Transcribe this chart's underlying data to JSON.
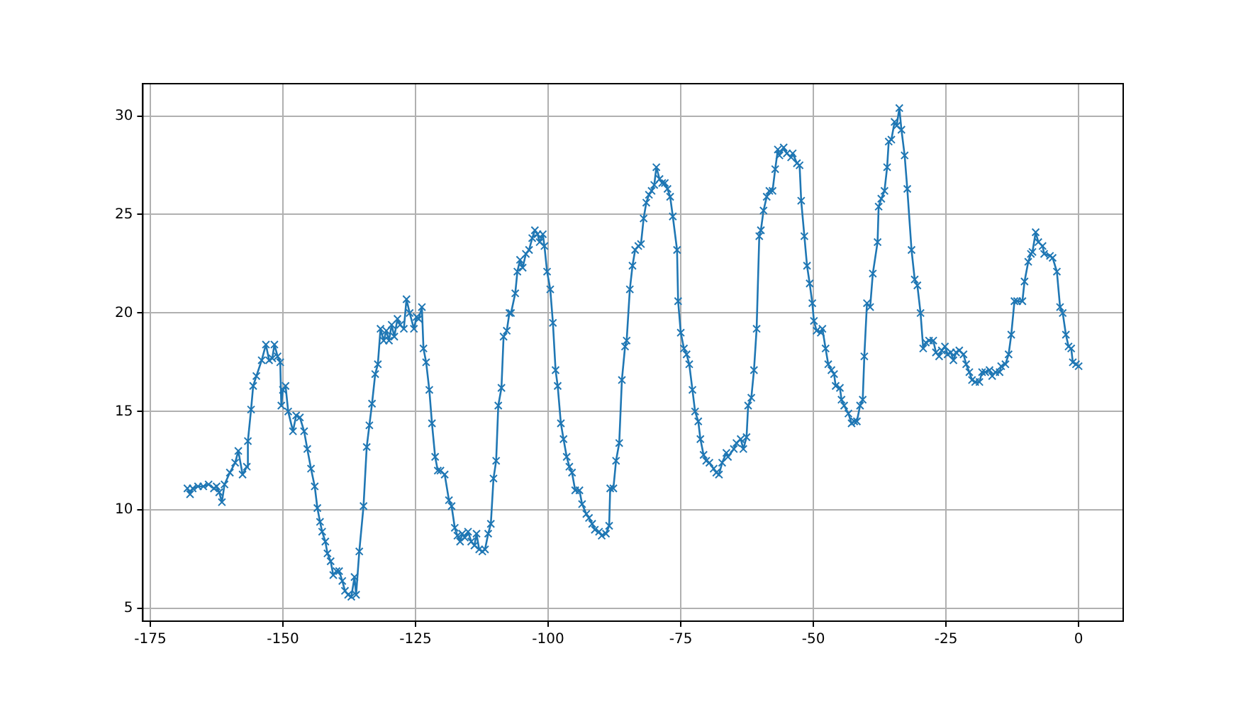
{
  "chart_data": {
    "type": "line",
    "marker": "cross",
    "line_style": "solid",
    "grid": true,
    "xlim": [
      -176.4,
      8.4
    ],
    "ylim": [
      4.36,
      31.64
    ],
    "xticks": [
      -175,
      -150,
      -125,
      -100,
      -75,
      -50,
      -25,
      0
    ],
    "yticks": [
      5,
      10,
      15,
      20,
      25,
      30
    ],
    "series": [
      {
        "color": "#1f77b4",
        "x": [
          -168,
          -167.5,
          -167,
          -166,
          -165,
          -164,
          -163,
          -162.5,
          -162,
          -161.5,
          -161,
          -160,
          -159,
          -158.4,
          -157.6,
          -156.8,
          -156.6,
          -156,
          -155.6,
          -155,
          -154,
          -153.2,
          -152.6,
          -152,
          -151.6,
          -151,
          -150.5,
          -150.3,
          -150,
          -149.5,
          -149,
          -148.1,
          -147.5,
          -146.8,
          -146,
          -145.4,
          -144.7,
          -144,
          -143.5,
          -143,
          -142.6,
          -142,
          -141.6,
          -141,
          -140.5,
          -139.9,
          -139.4,
          -138.8,
          -138.3,
          -137.7,
          -137.1,
          -136.5,
          -136.2,
          -135.6,
          -134.8,
          -134.2,
          -133.7,
          -133.2,
          -132.6,
          -132.1,
          -131.6,
          -131,
          -130.5,
          -130,
          -129.5,
          -129,
          -128.4,
          -127.9,
          -127.2,
          -126.7,
          -126.1,
          -125.3,
          -124.8,
          -124.4,
          -123.8,
          -123.5,
          -123,
          -122.4,
          -121.9,
          -121.3,
          -120.8,
          -120.3,
          -119.5,
          -118.7,
          -118.2,
          -117.6,
          -117.1,
          -116.6,
          -116.2,
          -115.7,
          -115.1,
          -114.5,
          -113.9,
          -113.5,
          -113,
          -112.4,
          -111.9,
          -111.3,
          -110.8,
          -110.3,
          -109.8,
          -109.4,
          -108.8,
          -108.4,
          -107.8,
          -107.3,
          -107,
          -106.2,
          -105.8,
          -105.3,
          -104.8,
          -104.2,
          -103.6,
          -103,
          -102.5,
          -102,
          -101.6,
          -101,
          -100.7,
          -100.2,
          -99.6,
          -99.1,
          -98.6,
          -98.2,
          -97.6,
          -97.1,
          -96.5,
          -96,
          -95.5,
          -94.9,
          -94.1,
          -93.6,
          -92.8,
          -92.3,
          -91.7,
          -91.2,
          -90.4,
          -89.9,
          -89.1,
          -88.5,
          -88.3,
          -87.7,
          -87.2,
          -86.6,
          -86.1,
          -85.5,
          -85.2,
          -84.6,
          -84.1,
          -83.6,
          -83,
          -82.5,
          -82,
          -81.5,
          -81,
          -80.5,
          -80,
          -79.6,
          -79,
          -78.5,
          -78,
          -77.5,
          -77,
          -76.5,
          -75.7,
          -75.5,
          -75,
          -74.4,
          -73.9,
          -73.4,
          -72.8,
          -72.3,
          -71.7,
          -71.3,
          -70.7,
          -70.2,
          -69.6,
          -68.8,
          -68.3,
          -67.8,
          -67.2,
          -66.4,
          -66.1,
          -65,
          -64.5,
          -63.7,
          -63.2,
          -62.6,
          -62.3,
          -61.7,
          -61.2,
          -60.7,
          -60.2,
          -59.9,
          -59.4,
          -58.8,
          -58.3,
          -57.7,
          -57.2,
          -56.7,
          -56.4,
          -55.6,
          -55,
          -54.2,
          -53.9,
          -53.1,
          -52.6,
          -52.3,
          -51.7,
          -51.2,
          -50.7,
          -50.2,
          -49.9,
          -49.4,
          -48.6,
          -48.3,
          -47.7,
          -47.2,
          -46.6,
          -46.1,
          -45.8,
          -45,
          -44.7,
          -44.2,
          -43.4,
          -42.8,
          -42.3,
          -41.8,
          -41.2,
          -40.7,
          -40.4,
          -39.9,
          -39.3,
          -38.8,
          -37.9,
          -37.7,
          -37.2,
          -36.6,
          -36.1,
          -35.8,
          -35.3,
          -34.7,
          -34.3,
          -33.8,
          -33.4,
          -32.8,
          -32.3,
          -31.5,
          -30.9,
          -30.4,
          -29.8,
          -29.3,
          -28.8,
          -28.2,
          -27.4,
          -26.9,
          -26.3,
          -25.8,
          -25.2,
          -24.7,
          -24.1,
          -23.6,
          -23.1,
          -22.5,
          -21.7,
          -21.2,
          -20.6,
          -20.1,
          -19.5,
          -18.7,
          -18.2,
          -17.6,
          -16.8,
          -16.3,
          -15.7,
          -14.9,
          -14.6,
          -13.8,
          -13.2,
          -12.7,
          -12.1,
          -11.6,
          -10.6,
          -10.2,
          -9.5,
          -9,
          -8.7,
          -8.1,
          -7.6,
          -6.8,
          -6.5,
          -5.4,
          -4.9,
          -4.1,
          -3.5,
          -3,
          -2.4,
          -1.9,
          -1.4,
          -1.1,
          -0.5,
          0
        ],
        "values": [
          11.1,
          10.8,
          11.1,
          11.2,
          11.2,
          11.3,
          11.1,
          11.2,
          10.9,
          10.4,
          11.3,
          11.9,
          12.4,
          13.0,
          11.8,
          12.2,
          13.5,
          15.1,
          16.3,
          16.8,
          17.6,
          18.4,
          17.6,
          17.7,
          18.4,
          17.8,
          17.5,
          15.3,
          16.1,
          16.3,
          15.0,
          14.0,
          14.8,
          14.7,
          14.0,
          13.1,
          12.1,
          11.2,
          10.1,
          9.4,
          8.9,
          8.4,
          7.8,
          7.4,
          6.7,
          6.9,
          6.9,
          6.4,
          5.9,
          5.7,
          5.6,
          6.6,
          5.7,
          7.9,
          10.2,
          13.2,
          14.3,
          15.4,
          16.9,
          17.4,
          19.2,
          18.6,
          19.1,
          18.6,
          19.4,
          18.8,
          19.7,
          19.4,
          19.2,
          20.7,
          20.0,
          19.2,
          19.8,
          19.7,
          20.3,
          18.2,
          17.5,
          16.1,
          14.4,
          12.7,
          12.0,
          12.0,
          11.8,
          10.5,
          10.2,
          9.1,
          8.7,
          8.4,
          8.8,
          8.6,
          8.9,
          8.4,
          8.2,
          8.8,
          8.0,
          7.9,
          8.0,
          8.8,
          9.3,
          11.6,
          12.5,
          15.3,
          16.2,
          18.8,
          19.1,
          20.0,
          20.0,
          21.0,
          22.1,
          22.7,
          22.3,
          23.0,
          23.2,
          23.8,
          24.2,
          24.0,
          23.6,
          24.0,
          23.4,
          22.1,
          21.2,
          19.5,
          17.1,
          16.3,
          14.4,
          13.6,
          12.7,
          12.2,
          11.9,
          11.0,
          11.0,
          10.3,
          9.8,
          9.6,
          9.3,
          9.0,
          8.9,
          8.7,
          8.8,
          9.2,
          11.1,
          11.1,
          12.5,
          13.4,
          16.6,
          18.3,
          18.6,
          21.2,
          22.4,
          23.2,
          23.4,
          23.5,
          24.8,
          25.6,
          26.0,
          26.2,
          26.5,
          27.4,
          26.8,
          26.6,
          26.6,
          26.3,
          25.9,
          24.9,
          23.2,
          20.6,
          19.0,
          18.2,
          17.9,
          17.4,
          16.1,
          15.0,
          14.5,
          13.6,
          12.8,
          12.5,
          12.4,
          12.1,
          11.9,
          11.8,
          12.4,
          12.9,
          12.7,
          13.1,
          13.4,
          13.6,
          13.1,
          13.7,
          15.3,
          15.7,
          17.1,
          19.2,
          23.9,
          24.2,
          25.2,
          25.9,
          26.2,
          26.2,
          27.3,
          28.3,
          28.0,
          28.4,
          28.1,
          27.9,
          28.1,
          27.6,
          27.5,
          25.7,
          23.9,
          22.4,
          21.5,
          20.5,
          19.6,
          19.1,
          19.0,
          19.2,
          18.2,
          17.4,
          17.1,
          16.9,
          16.3,
          16.2,
          15.6,
          15.3,
          14.9,
          14.4,
          14.5,
          14.5,
          15.3,
          15.6,
          17.8,
          20.5,
          20.3,
          22.0,
          23.6,
          25.4,
          25.8,
          26.2,
          27.4,
          28.7,
          28.8,
          29.7,
          29.5,
          30.4,
          29.3,
          28.0,
          26.3,
          23.2,
          21.7,
          21.4,
          20.0,
          18.2,
          18.5,
          18.6,
          18.6,
          18.0,
          17.8,
          18.1,
          18.3,
          17.9,
          18.0,
          17.6,
          18.0,
          18.1,
          17.9,
          17.4,
          17.0,
          16.6,
          16.5,
          16.5,
          17.0,
          17.0,
          17.1,
          16.8,
          17.0,
          17.0,
          17.3,
          17.4,
          17.9,
          18.9,
          20.6,
          20.6,
          20.6,
          21.6,
          22.6,
          23.0,
          23.1,
          24.1,
          23.6,
          23.4,
          23.0,
          22.9,
          22.8,
          22.1,
          20.3,
          20.0,
          18.9,
          18.3,
          18.2,
          17.5,
          17.4,
          17.3
        ]
      }
    ]
  }
}
